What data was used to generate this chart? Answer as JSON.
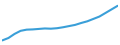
{
  "years": [
    2003,
    2004,
    2005,
    2006,
    2007,
    2008,
    2009,
    2010,
    2011,
    2012,
    2013,
    2014,
    2015,
    2016,
    2017,
    2018,
    2019,
    2020,
    2021,
    2022
  ],
  "values": [
    14.5,
    15.5,
    17.2,
    18.5,
    19.0,
    19.1,
    19.3,
    19.5,
    19.4,
    19.6,
    20.0,
    20.5,
    21.0,
    21.8,
    22.5,
    23.5,
    24.5,
    26.0,
    27.5,
    29.0
  ],
  "line_color": "#3a9fd8",
  "linewidth": 1.5,
  "background_color": "#ffffff",
  "ylim": [
    13.5,
    30.5
  ],
  "xlim": [
    2003,
    2022
  ]
}
